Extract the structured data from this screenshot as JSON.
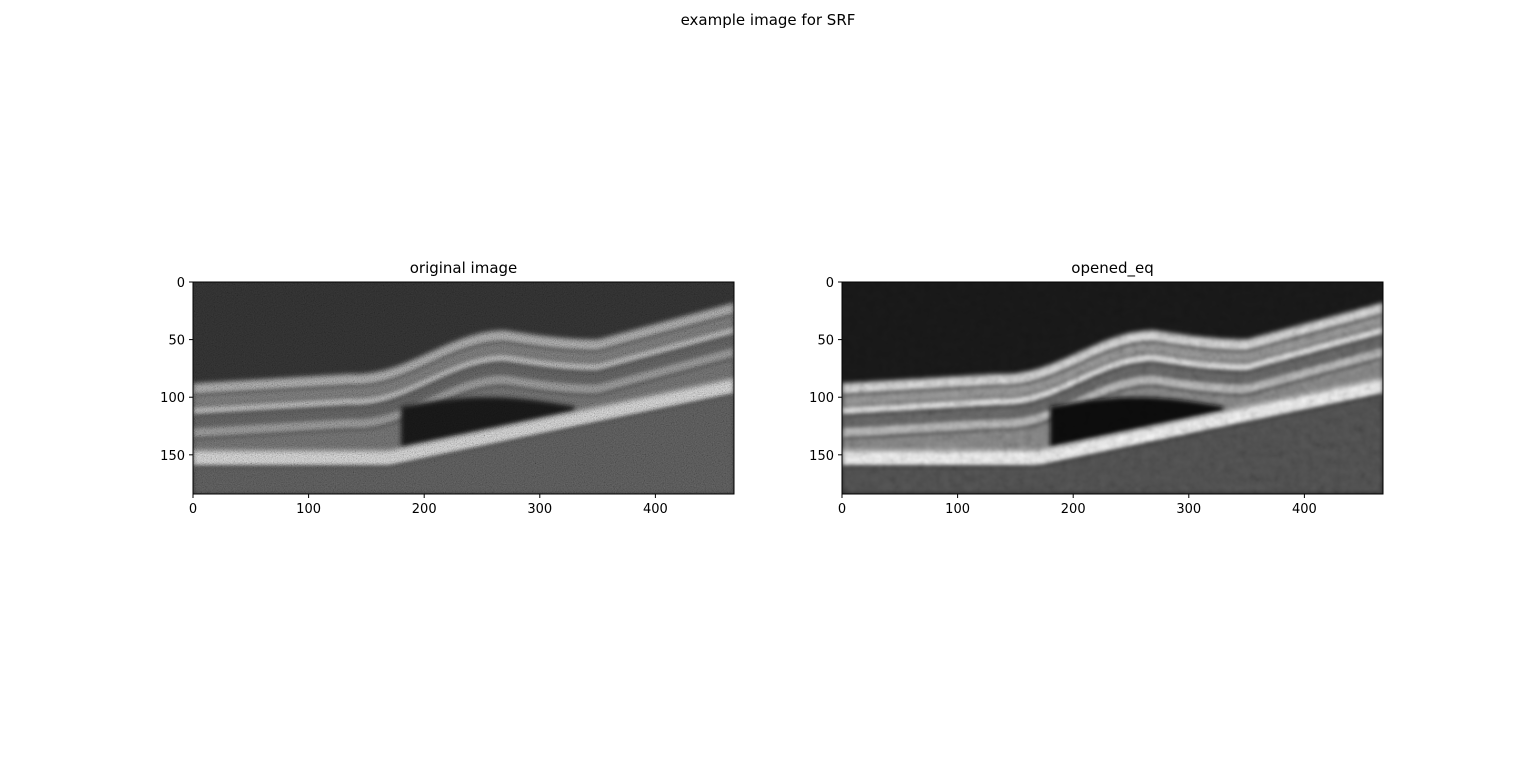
{
  "figure": {
    "suptitle": "example image for SRF"
  },
  "chart_data": [
    {
      "type": "heatmap",
      "title": "original image",
      "colormap": "gray",
      "image_size": [
        468,
        184
      ],
      "xlim": [
        0,
        468
      ],
      "ylim": [
        184,
        0
      ],
      "xticks": [
        0,
        100,
        200,
        300,
        400
      ],
      "yticks": [
        0,
        50,
        100,
        150
      ],
      "grid": false
    },
    {
      "type": "heatmap",
      "title": "opened_eq",
      "colormap": "gray",
      "image_size": [
        468,
        184
      ],
      "xlim": [
        0,
        468
      ],
      "ylim": [
        184,
        0
      ],
      "xticks": [
        0,
        100,
        200,
        300,
        400
      ],
      "yticks": [
        0,
        50,
        100,
        150
      ],
      "grid": false
    }
  ]
}
